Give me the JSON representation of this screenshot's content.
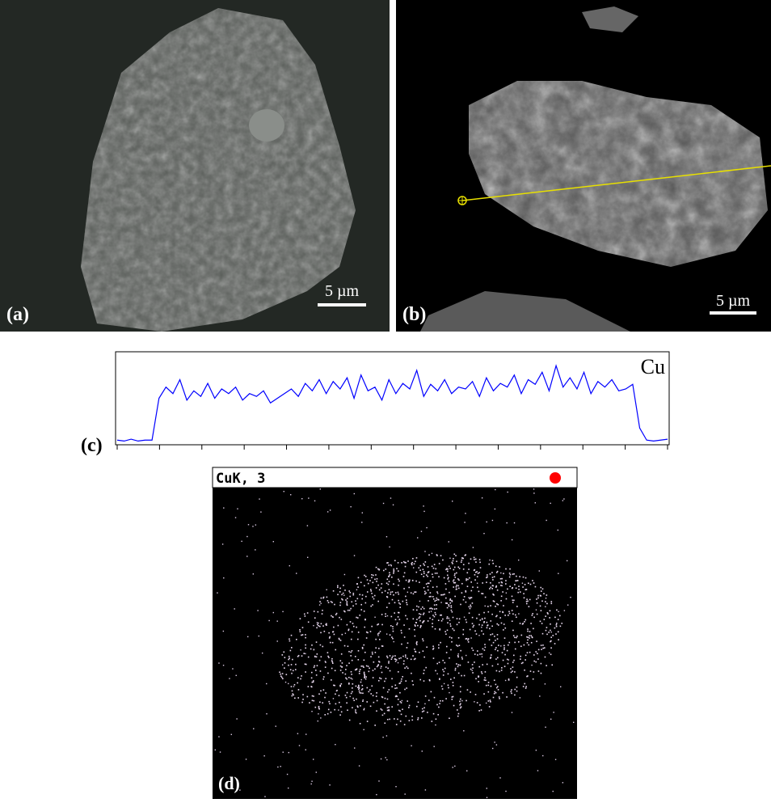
{
  "panels": {
    "a": {
      "label": "(a)",
      "scale_bar": "5 µm"
    },
    "b": {
      "label": "(b)",
      "scale_bar": "5 µm"
    },
    "c": {
      "label": "(c)",
      "element": "Cu",
      "values": [
        5,
        4,
        6,
        4,
        5,
        5,
        50,
        62,
        55,
        70,
        48,
        58,
        52,
        66,
        50,
        60,
        55,
        62,
        48,
        55,
        52,
        58,
        45,
        50,
        55,
        60,
        52,
        66,
        58,
        70,
        55,
        68,
        60,
        72,
        50,
        75,
        58,
        62,
        48,
        70,
        55,
        66,
        60,
        80,
        52,
        65,
        58,
        70,
        55,
        62,
        60,
        68,
        52,
        72,
        58,
        66,
        62,
        75,
        55,
        70,
        65,
        78,
        58,
        85,
        62,
        72,
        60,
        78,
        55,
        68,
        62,
        70,
        58,
        60,
        65,
        18,
        5,
        4,
        5,
        6
      ],
      "ylim": [
        0,
        100
      ]
    },
    "d": {
      "label": "(d)",
      "header": "CuK, 3"
    }
  }
}
